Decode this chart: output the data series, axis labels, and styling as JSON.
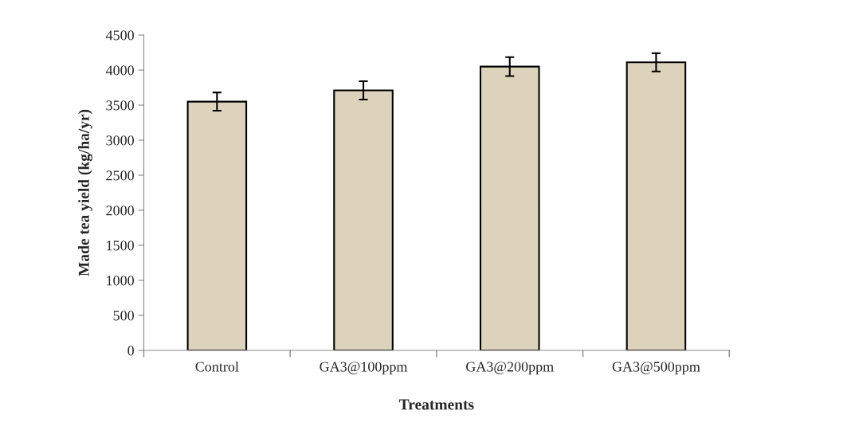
{
  "chart_data": {
    "type": "bar",
    "xlabel": "Treatments",
    "ylabel": "Made tea yield (kg/ha/yr)",
    "categories": [
      "Control",
      "GA3@100ppm",
      "GA3@200ppm",
      "GA3@500ppm"
    ],
    "values": [
      3550,
      3710,
      4050,
      4110
    ],
    "errors": [
      130,
      130,
      135,
      130
    ],
    "color": "#ddd3bd",
    "ylim": [
      0,
      4500
    ],
    "yticks": [
      0,
      500,
      1000,
      1500,
      2000,
      2500,
      3000,
      3500,
      4000,
      4500
    ],
    "grid": false,
    "legend": false
  }
}
